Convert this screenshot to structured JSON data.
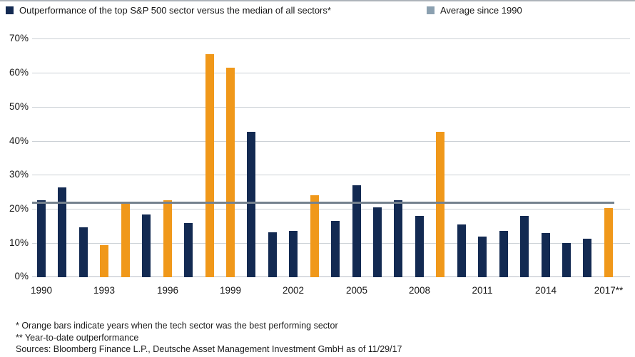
{
  "legend": {
    "series1_label": "Outperformance of the top S&P 500 sector versus the median of all sectors*",
    "series2_label": "Average since 1990"
  },
  "colors": {
    "navy": "#132a52",
    "orange": "#f0981a",
    "average_line": "#75828e",
    "average_swatch": "#8ba0b0",
    "gridline": "#cbd0d5",
    "axis_line": "#b9bfc6"
  },
  "chart_data": {
    "type": "bar",
    "title": "Outperformance of the top S&P 500 sector versus the median of all sectors*",
    "ylabel": "",
    "xlabel": "",
    "ylim": [
      0,
      70
    ],
    "ytick_step": 10,
    "ytick_suffix": "%",
    "grid": true,
    "legend_position": "top",
    "years": [
      1990,
      1991,
      1992,
      1993,
      1994,
      1995,
      1996,
      1997,
      1998,
      1999,
      2000,
      2001,
      2002,
      2003,
      2004,
      2005,
      2006,
      2007,
      2008,
      2009,
      2010,
      2011,
      2012,
      2013,
      2014,
      2015,
      2016,
      2017
    ],
    "values": [
      22.5,
      26.3,
      14.6,
      9.5,
      21.5,
      18.3,
      22.5,
      15.8,
      65.5,
      61.5,
      42.7,
      13.2,
      13.5,
      24,
      16.5,
      27,
      20.5,
      22.5,
      18,
      42.7,
      15.5,
      12,
      13.5,
      18,
      13,
      10,
      11.2,
      20.3
    ],
    "tech_sector_years_orange": [
      1993,
      1994,
      1996,
      1998,
      1999,
      2003,
      2009,
      2017
    ],
    "average_since_1990": 22,
    "xtick_labels": [
      "1990",
      "1993",
      "1996",
      "1999",
      "2002",
      "2005",
      "2008",
      "2011",
      "2014",
      "2017**"
    ],
    "xtick_every_n_bars": 3
  },
  "footnotes": [
    "* Orange bars indicate years when the tech sector was the best performing sector",
    "** Year-to-date outperformance",
    "Sources: Bloomberg Finance L.P., Deutsche Asset Management Investment GmbH as of 11/29/17"
  ]
}
